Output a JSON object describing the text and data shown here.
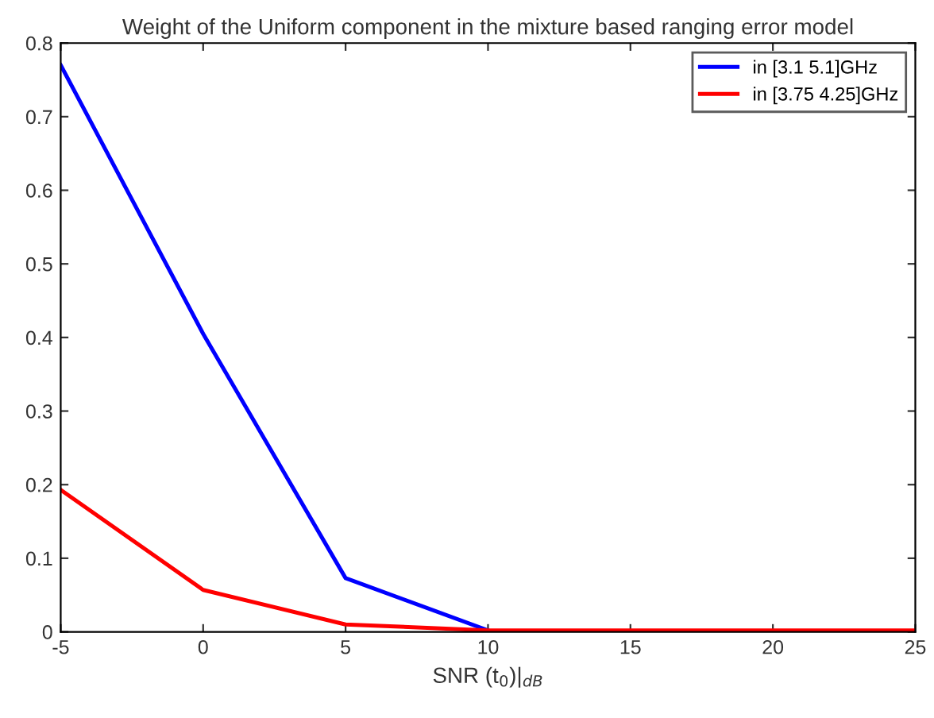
{
  "chart_data": {
    "type": "line",
    "title": "Weight of the Uniform component in the mixture based ranging error model",
    "xlabel": "SNR (t$_{0}$)|$_{dB}$",
    "x": [
      -5,
      0,
      5,
      10,
      15,
      20,
      25
    ],
    "series": [
      {
        "name": "in [3.1 5.1]GHz",
        "color": "#0000ff",
        "values": [
          0.77,
          0.405,
          0.073,
          0.002,
          null,
          null,
          null
        ]
      },
      {
        "name": "in [3.75 4.25]GHz",
        "color": "#ff0000",
        "values": [
          0.193,
          0.057,
          0.01,
          0.002,
          0.002,
          0.002,
          0.002
        ]
      }
    ],
    "xlim": [
      -5,
      25
    ],
    "xticks": [
      -5,
      0,
      5,
      10,
      15,
      20,
      25
    ],
    "ylim": [
      0,
      0.8
    ],
    "yticks": [
      0,
      0.1,
      0.2,
      0.3,
      0.4,
      0.5,
      0.6,
      0.7,
      0.8
    ],
    "grid": false,
    "legend": "top right",
    "marker": "none",
    "line_style": "solid"
  }
}
